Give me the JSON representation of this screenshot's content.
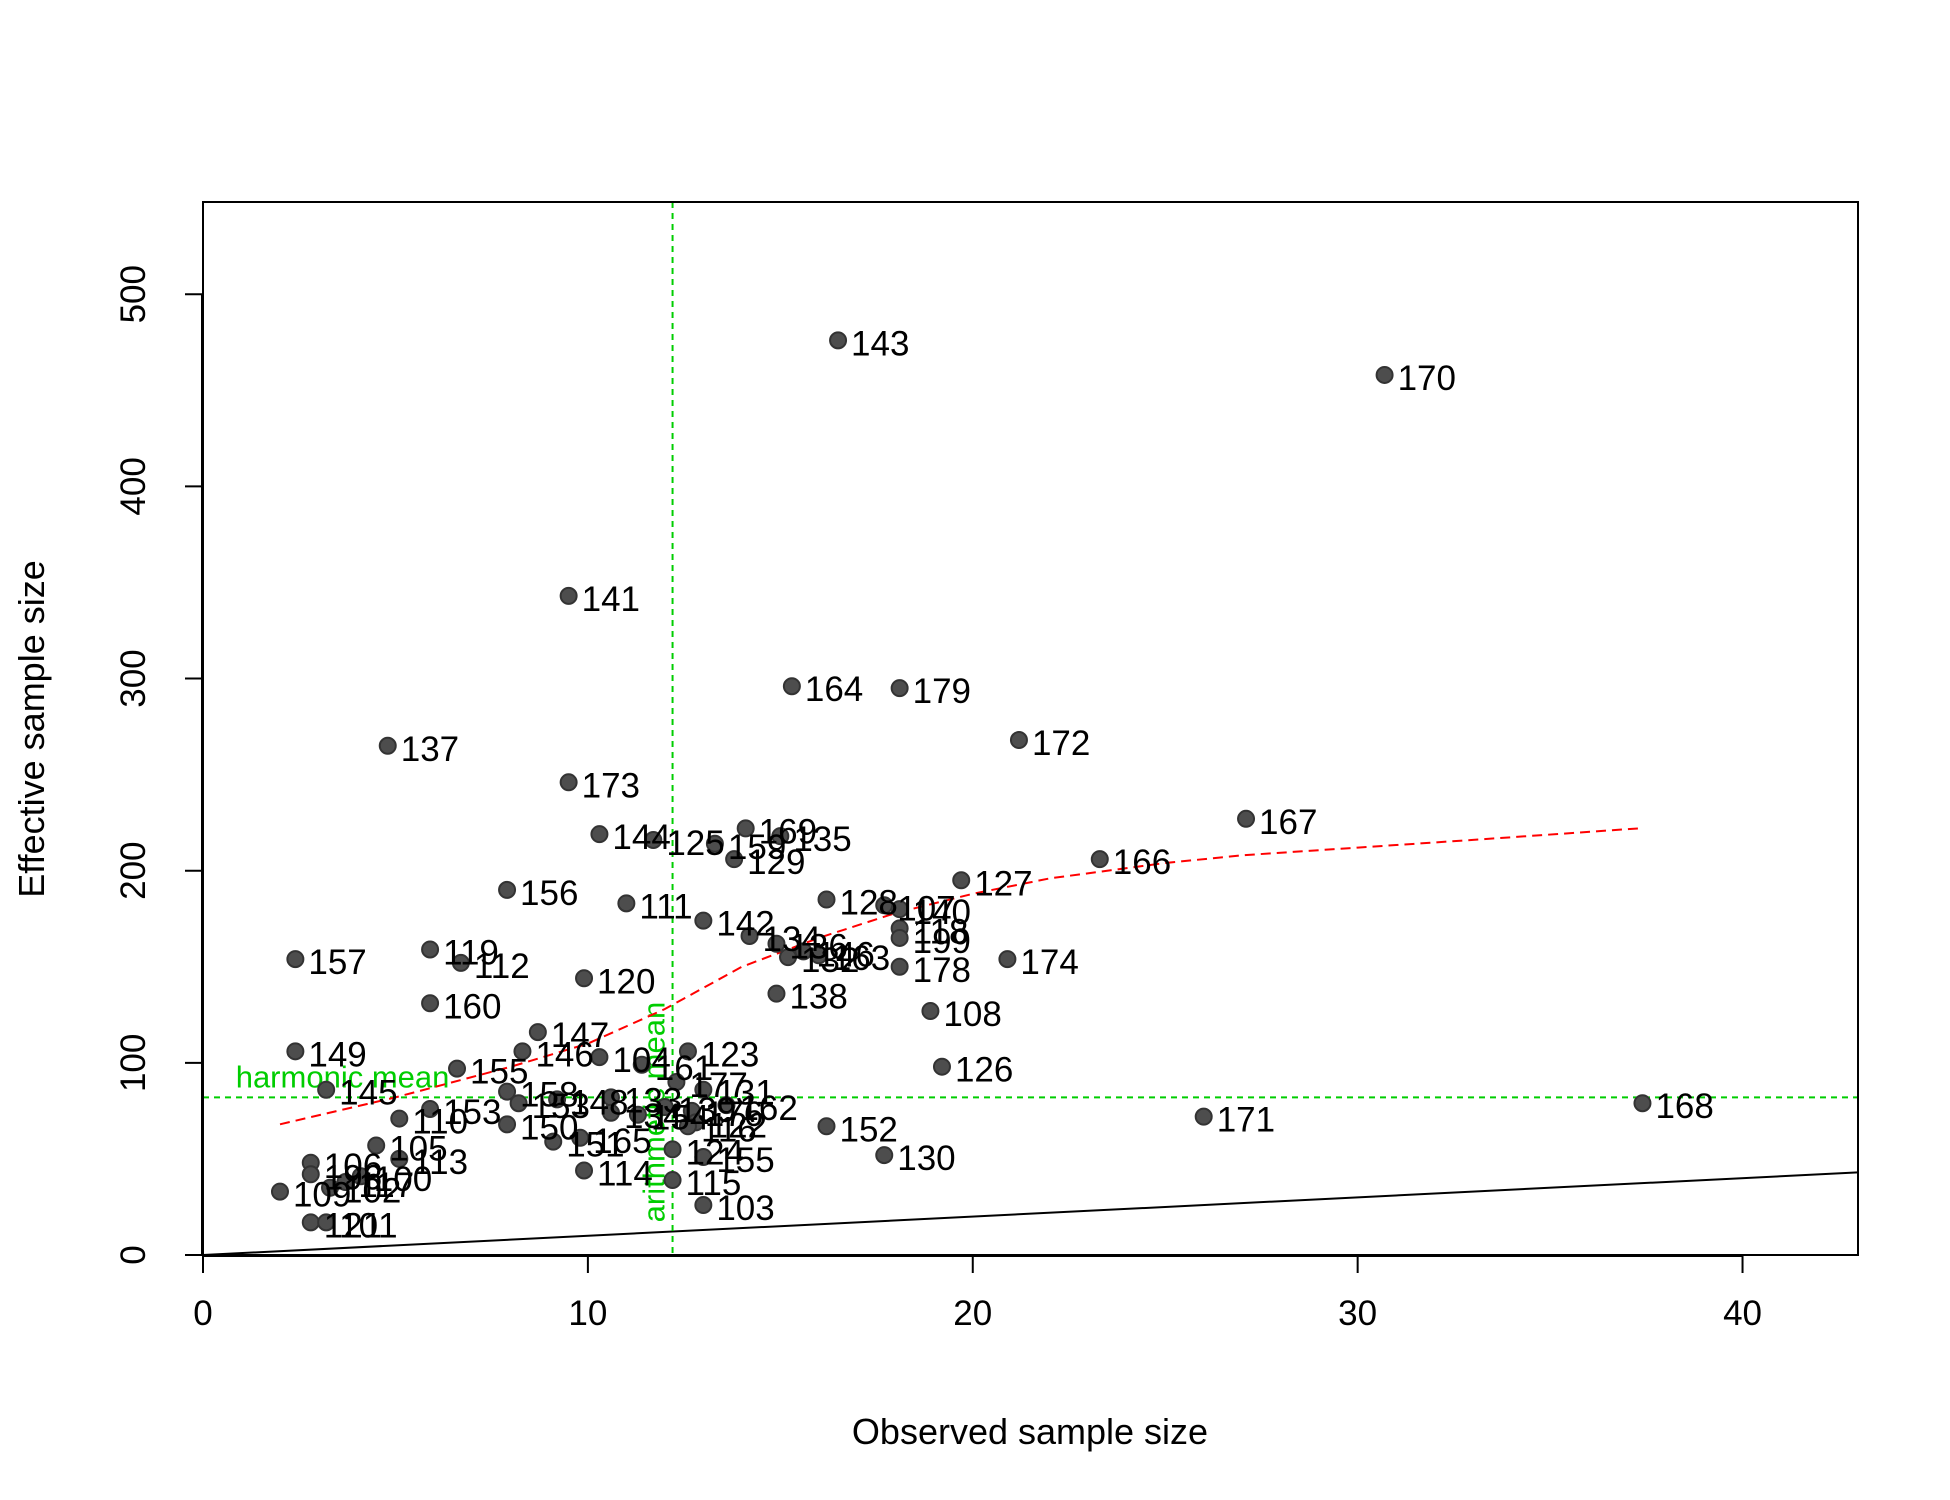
{
  "chart_data": {
    "type": "scatter",
    "xlabel": "Observed sample size",
    "ylabel": "Effective sample size",
    "xlim": [
      0,
      43
    ],
    "ylim": [
      0,
      548
    ],
    "xticks": [
      0,
      10,
      20,
      30,
      40
    ],
    "yticks": [
      0,
      100,
      200,
      300,
      400,
      500
    ],
    "harmonic_mean": {
      "label": "harmonic mean",
      "value": 82
    },
    "arithmetic_mean": {
      "label": "arithmetic mean",
      "value": 12.2
    },
    "identity_line": {
      "x": [
        0,
        43
      ],
      "y": [
        0,
        43
      ]
    },
    "trend_line": {
      "x": [
        2,
        5,
        8,
        10,
        12,
        14,
        16,
        18,
        20,
        22,
        25,
        27,
        30,
        33,
        37.3
      ],
      "y": [
        68,
        82,
        98,
        110,
        128,
        150,
        165,
        178,
        188,
        196,
        204,
        208,
        212,
        216,
        222
      ]
    },
    "points": [
      {
        "x": 16.5,
        "y": 476,
        "label": "143"
      },
      {
        "x": 30.7,
        "y": 458,
        "label": "170"
      },
      {
        "x": 9.5,
        "y": 343,
        "label": "141"
      },
      {
        "x": 15.3,
        "y": 296,
        "label": "164"
      },
      {
        "x": 18.1,
        "y": 295,
        "label": "179"
      },
      {
        "x": 21.2,
        "y": 268,
        "label": "172"
      },
      {
        "x": 4.8,
        "y": 265,
        "label": "137"
      },
      {
        "x": 9.5,
        "y": 246,
        "label": "173"
      },
      {
        "x": 27.1,
        "y": 227,
        "label": "167"
      },
      {
        "x": 14.1,
        "y": 222,
        "label": "169"
      },
      {
        "x": 15.0,
        "y": 218,
        "label": "135"
      },
      {
        "x": 10.3,
        "y": 219,
        "label": "144"
      },
      {
        "x": 11.7,
        "y": 216,
        "label": "125"
      },
      {
        "x": 13.3,
        "y": 214,
        "label": "159"
      },
      {
        "x": 13.8,
        "y": 206,
        "label": "129"
      },
      {
        "x": 23.3,
        "y": 206,
        "label": "166"
      },
      {
        "x": 19.7,
        "y": 195,
        "label": "127"
      },
      {
        "x": 7.9,
        "y": 190,
        "label": "156"
      },
      {
        "x": 16.2,
        "y": 185,
        "label": "128"
      },
      {
        "x": 11.0,
        "y": 183,
        "label": "111"
      },
      {
        "x": 17.7,
        "y": 182,
        "label": "107"
      },
      {
        "x": 18.1,
        "y": 180,
        "label": "140"
      },
      {
        "x": 13.0,
        "y": 174,
        "label": "142"
      },
      {
        "x": 18.1,
        "y": 170,
        "label": "118"
      },
      {
        "x": 14.2,
        "y": 166,
        "label": "134"
      },
      {
        "x": 18.1,
        "y": 165,
        "label": "199"
      },
      {
        "x": 14.9,
        "y": 162,
        "label": "136"
      },
      {
        "x": 15.6,
        "y": 158,
        "label": "146"
      },
      {
        "x": 15.2,
        "y": 155,
        "label": "132"
      },
      {
        "x": 16.0,
        "y": 156,
        "label": "163"
      },
      {
        "x": 5.9,
        "y": 159,
        "label": "119"
      },
      {
        "x": 2.4,
        "y": 154,
        "label": "157"
      },
      {
        "x": 20.9,
        "y": 154,
        "label": "174"
      },
      {
        "x": 6.7,
        "y": 152,
        "label": "112"
      },
      {
        "x": 18.1,
        "y": 150,
        "label": "178"
      },
      {
        "x": 9.9,
        "y": 144,
        "label": "120"
      },
      {
        "x": 14.9,
        "y": 136,
        "label": "138"
      },
      {
        "x": 5.9,
        "y": 131,
        "label": "160"
      },
      {
        "x": 18.9,
        "y": 127,
        "label": "108"
      },
      {
        "x": 8.7,
        "y": 116,
        "label": "147"
      },
      {
        "x": 8.3,
        "y": 106,
        "label": "146"
      },
      {
        "x": 2.4,
        "y": 106,
        "label": "149"
      },
      {
        "x": 10.3,
        "y": 103,
        "label": "104"
      },
      {
        "x": 12.6,
        "y": 106,
        "label": "123"
      },
      {
        "x": 11.4,
        "y": 99,
        "label": "161"
      },
      {
        "x": 19.2,
        "y": 98,
        "label": "126"
      },
      {
        "x": 6.6,
        "y": 97,
        "label": "155"
      },
      {
        "x": 12.3,
        "y": 90,
        "label": "177"
      },
      {
        "x": 13.0,
        "y": 86,
        "label": "131"
      },
      {
        "x": 3.2,
        "y": 86,
        "label": "145"
      },
      {
        "x": 7.9,
        "y": 85,
        "label": "158"
      },
      {
        "x": 10.6,
        "y": 82,
        "label": "133"
      },
      {
        "x": 9.2,
        "y": 81,
        "label": "148"
      },
      {
        "x": 37.4,
        "y": 79,
        "label": "168"
      },
      {
        "x": 8.2,
        "y": 79,
        "label": "153"
      },
      {
        "x": 12.0,
        "y": 77,
        "label": "139"
      },
      {
        "x": 13.6,
        "y": 78,
        "label": "162"
      },
      {
        "x": 5.9,
        "y": 76,
        "label": "153"
      },
      {
        "x": 12.7,
        "y": 75,
        "label": "176"
      },
      {
        "x": 10.6,
        "y": 74,
        "label": "134"
      },
      {
        "x": 11.3,
        "y": 73,
        "label": "154"
      },
      {
        "x": 26.0,
        "y": 72,
        "label": "171"
      },
      {
        "x": 5.1,
        "y": 71,
        "label": "110"
      },
      {
        "x": 12.8,
        "y": 69,
        "label": "122"
      },
      {
        "x": 12.6,
        "y": 67,
        "label": "116"
      },
      {
        "x": 7.9,
        "y": 68,
        "label": "150"
      },
      {
        "x": 16.2,
        "y": 67,
        "label": "152"
      },
      {
        "x": 9.8,
        "y": 61,
        "label": "165"
      },
      {
        "x": 9.1,
        "y": 59,
        "label": "151"
      },
      {
        "x": 4.5,
        "y": 57,
        "label": "105"
      },
      {
        "x": 12.2,
        "y": 55,
        "label": "124"
      },
      {
        "x": 17.7,
        "y": 52,
        "label": "130"
      },
      {
        "x": 13.0,
        "y": 51,
        "label": "155"
      },
      {
        "x": 5.1,
        "y": 50,
        "label": "113"
      },
      {
        "x": 2.8,
        "y": 48,
        "label": "106"
      },
      {
        "x": 9.9,
        "y": 44,
        "label": "114"
      },
      {
        "x": 2.8,
        "y": 42,
        "label": "196"
      },
      {
        "x": 4.1,
        "y": 41,
        "label": "100"
      },
      {
        "x": 12.2,
        "y": 39,
        "label": "115"
      },
      {
        "x": 3.7,
        "y": 38,
        "label": "117"
      },
      {
        "x": 3.3,
        "y": 35,
        "label": "102"
      },
      {
        "x": 2.0,
        "y": 33,
        "label": "109"
      },
      {
        "x": 13.0,
        "y": 26,
        "label": "103"
      },
      {
        "x": 2.8,
        "y": 17,
        "label": "121"
      },
      {
        "x": 3.2,
        "y": 17,
        "label": "101"
      }
    ]
  }
}
